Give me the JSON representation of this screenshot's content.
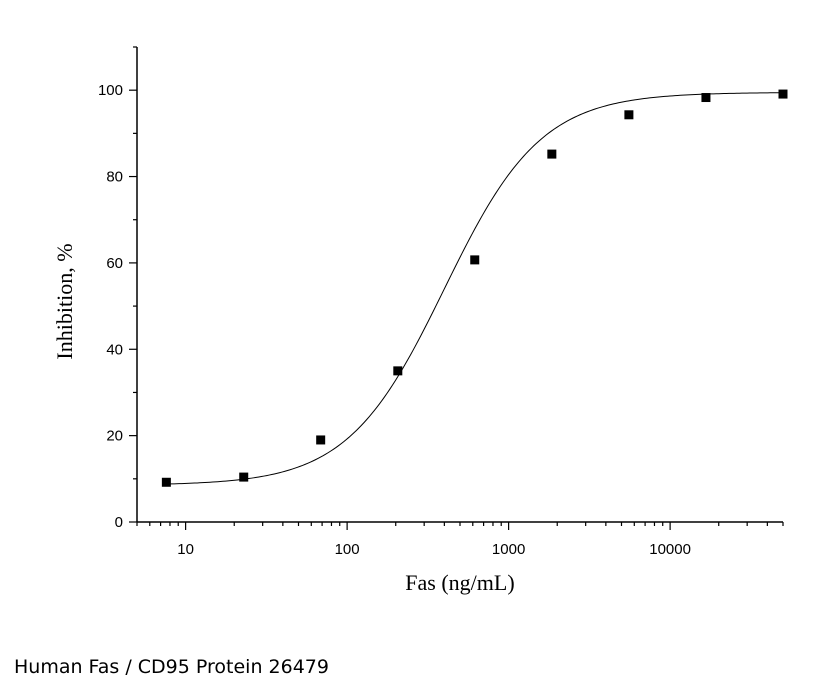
{
  "chart_data": {
    "type": "scatter",
    "title": "",
    "xlabel": "Fas (ng/mL)",
    "ylabel": "Inhibition, %",
    "x_scale": "log",
    "xlim": [
      5,
      50000
    ],
    "ylim": [
      0,
      110
    ],
    "x_ticks": [
      10,
      100,
      1000,
      10000
    ],
    "x_tick_labels": [
      "10",
      "100",
      "1000",
      "10000"
    ],
    "y_ticks": [
      0,
      20,
      40,
      60,
      80,
      100
    ],
    "y_tick_labels": [
      "0",
      "20",
      "40",
      "60",
      "80",
      "100"
    ],
    "grid": false,
    "legend": "none",
    "series": [
      {
        "marker": "square",
        "color": "#000000",
        "x": [
          7.6,
          22.9,
          68.6,
          206,
          617,
          1852,
          5556,
          16667,
          50000
        ],
        "y": [
          9.2,
          10.4,
          19.0,
          35.0,
          60.7,
          85.2,
          94.3,
          98.3,
          99.1
        ]
      }
    ],
    "fit_curve": {
      "type": "4PL",
      "color": "#000000",
      "bottom": 8.5,
      "top": 99.5,
      "ec50": 400,
      "hill": 1.45
    }
  },
  "caption": "Human Fas / CD95 Protein 26479"
}
